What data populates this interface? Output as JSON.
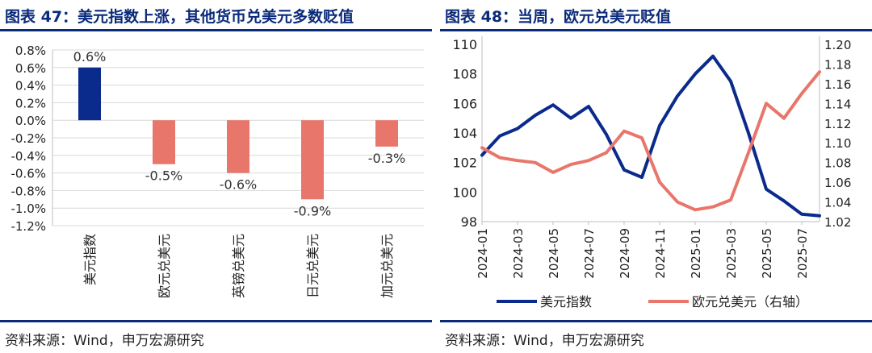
{
  "left": {
    "title": "图表 47：美元指数上涨，其他货币兑美元多数贬值",
    "source": "资料来源：Wind，申万宏源研究"
  },
  "right": {
    "title": "图表 48：当周，欧元兑美元贬值",
    "source": "资料来源：Wind，申万宏源研究"
  },
  "colors": {
    "navy": "#0a2a8c",
    "salmon": "#e8766a",
    "title": "#0a2a7a",
    "grid": "#d9d9d9"
  },
  "chart_data": [
    {
      "type": "bar",
      "categories": [
        "美元指数",
        "欧元兑美元",
        "英镑兑美元",
        "日元兑美元",
        "加元兑美元"
      ],
      "values": [
        0.6,
        -0.5,
        -0.6,
        -0.9,
        -0.3
      ],
      "data_labels": [
        "0.6%",
        "-0.5%",
        "-0.6%",
        "-0.9%",
        "-0.3%"
      ],
      "bar_colors": [
        "#0a2a8c",
        "#e8766a",
        "#e8766a",
        "#e8766a",
        "#e8766a"
      ],
      "ylim": [
        -1.2,
        0.8
      ],
      "yticks": [
        "0.8%",
        "0.6%",
        "0.4%",
        "0.2%",
        "0.0%",
        "-0.2%",
        "-0.4%",
        "-0.6%",
        "-0.8%",
        "-1.0%",
        "-1.2%"
      ],
      "ytick_values": [
        0.8,
        0.6,
        0.4,
        0.2,
        0.0,
        -0.2,
        -0.4,
        -0.6,
        -0.8,
        -1.0,
        -1.2
      ],
      "grid": true
    },
    {
      "type": "line",
      "x": [
        "2024-01",
        "2024-02",
        "2024-03",
        "2024-04",
        "2024-05",
        "2024-06",
        "2024-07",
        "2024-08",
        "2024-09",
        "2024-10",
        "2024-11",
        "2024-12",
        "2025-01",
        "2025-02",
        "2025-03",
        "2025-04",
        "2025-05",
        "2025-06",
        "2025-07",
        "2025-08"
      ],
      "xticks": [
        "2024-01",
        "2024-03",
        "2024-05",
        "2024-07",
        "2024-09",
        "2024-11",
        "2025-01",
        "2025-03",
        "2025-05",
        "2025-07"
      ],
      "series": [
        {
          "name": "美元指数",
          "axis": "left",
          "color": "#0a2a8c",
          "values": [
            102.5,
            103.8,
            104.3,
            105.2,
            105.9,
            105.0,
            105.8,
            103.9,
            101.5,
            101.0,
            104.5,
            106.5,
            108.0,
            109.2,
            107.5,
            104.0,
            100.2,
            99.4,
            98.5,
            98.4
          ]
        },
        {
          "name": "欧元兑美元（右轴）",
          "axis": "right",
          "color": "#e8766a",
          "values": [
            1.095,
            1.085,
            1.082,
            1.08,
            1.07,
            1.078,
            1.082,
            1.09,
            1.112,
            1.105,
            1.06,
            1.04,
            1.032,
            1.035,
            1.042,
            1.09,
            1.14,
            1.125,
            1.15,
            1.172
          ]
        }
      ],
      "yleft_ticks": [
        110,
        108,
        106,
        104,
        102,
        100,
        98
      ],
      "yleft_lim": [
        98,
        110
      ],
      "yright_ticks": [
        "1.20",
        "1.18",
        "1.16",
        "1.14",
        "1.12",
        "1.10",
        "1.08",
        "1.06",
        "1.04",
        "1.02"
      ],
      "yright_tick_values": [
        1.2,
        1.18,
        1.16,
        1.14,
        1.12,
        1.1,
        1.08,
        1.06,
        1.04,
        1.02
      ],
      "yright_lim": [
        1.02,
        1.2
      ],
      "legend": [
        "美元指数",
        "欧元兑美元（右轴）"
      ],
      "legend_position": "bottom",
      "grid": false
    }
  ]
}
